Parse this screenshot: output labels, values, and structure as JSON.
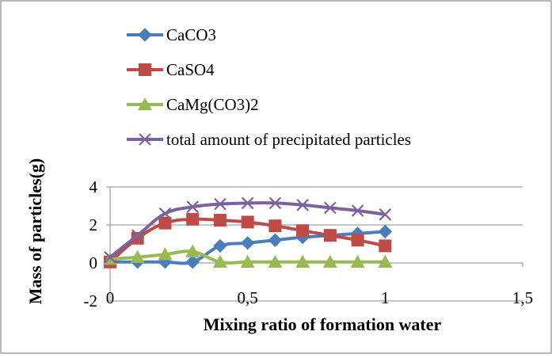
{
  "chart_data": {
    "type": "line",
    "title": "",
    "xlabel": "Mixing ratio of formation water",
    "ylabel": "Mass of particles(g)",
    "xlim": [
      0,
      1.5
    ],
    "ylim": [
      -2,
      4
    ],
    "x_ticks": [
      "0",
      "0,5",
      "1",
      "1,5"
    ],
    "y_ticks": [
      "4",
      "2",
      "0",
      "-2"
    ],
    "x_tick_values": [
      0,
      0.5,
      1,
      1.5
    ],
    "y_tick_values": [
      4,
      2,
      0,
      -2
    ],
    "grid": "horizontal",
    "legend_position": "top",
    "x": [
      0,
      0.1,
      0.2,
      0.3,
      0.4,
      0.5,
      0.6,
      0.7,
      0.8,
      0.9,
      1.0
    ],
    "series": [
      {
        "name": "CaCO3",
        "color": "#4A7EBB",
        "marker": "diamond",
        "values": [
          0.05,
          0.05,
          0.05,
          0.05,
          0.9,
          1.05,
          1.2,
          1.35,
          1.45,
          1.55,
          1.65
        ]
      },
      {
        "name": "CaSO4",
        "color": "#BE4B48",
        "marker": "square",
        "values": [
          0.05,
          1.3,
          2.1,
          2.3,
          2.25,
          2.15,
          1.95,
          1.7,
          1.45,
          1.2,
          0.9
        ]
      },
      {
        "name": "CaMg(CO3)2",
        "color": "#98B954",
        "marker": "triangle",
        "values": [
          0.2,
          0.3,
          0.45,
          0.6,
          0.05,
          0.05,
          0.05,
          0.05,
          0.05,
          0.05,
          0.05
        ]
      },
      {
        "name": "total amount of precipitated particles",
        "color": "#7D60A0",
        "marker": "x",
        "values": [
          0.3,
          1.45,
          2.6,
          2.95,
          3.1,
          3.15,
          3.15,
          3.05,
          2.9,
          2.75,
          2.55
        ]
      }
    ]
  }
}
